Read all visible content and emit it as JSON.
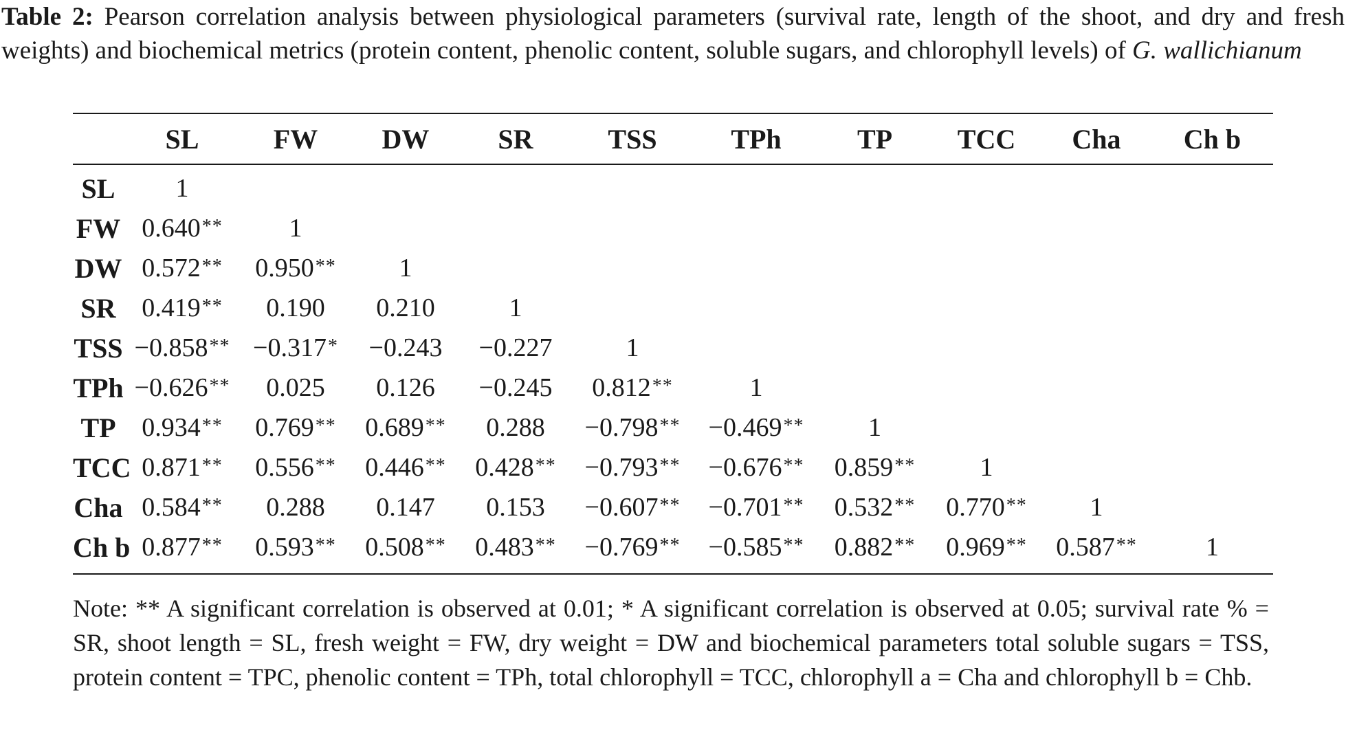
{
  "caption": {
    "label": "Table 2:",
    "text": "Pearson correlation analysis between physiological parameters (survival rate, length of the shoot, and dry and fresh weights) and biochemical metrics (protein content, phenolic content, soluble sugars, and chlorophyll levels) of",
    "species": "G. wallichianum"
  },
  "table": {
    "columns": [
      "SL",
      "FW",
      "DW",
      "SR",
      "TSS",
      "TPh",
      "TP",
      "TCC",
      "Cha",
      "Ch b"
    ],
    "rows": [
      {
        "label": "SL",
        "cells": [
          {
            "v": "1",
            "s": ""
          }
        ]
      },
      {
        "label": "FW",
        "cells": [
          {
            "v": "0.640",
            "s": "**"
          },
          {
            "v": "1",
            "s": ""
          }
        ]
      },
      {
        "label": "DW",
        "cells": [
          {
            "v": "0.572",
            "s": "**"
          },
          {
            "v": "0.950",
            "s": "**"
          },
          {
            "v": "1",
            "s": ""
          }
        ]
      },
      {
        "label": "SR",
        "cells": [
          {
            "v": "0.419",
            "s": "**"
          },
          {
            "v": "0.190",
            "s": ""
          },
          {
            "v": "0.210",
            "s": ""
          },
          {
            "v": "1",
            "s": ""
          }
        ]
      },
      {
        "label": "TSS",
        "cells": [
          {
            "v": "−0.858",
            "s": "**"
          },
          {
            "v": "−0.317",
            "s": "*"
          },
          {
            "v": "−0.243",
            "s": ""
          },
          {
            "v": "−0.227",
            "s": ""
          },
          {
            "v": "1",
            "s": ""
          }
        ]
      },
      {
        "label": "TPh",
        "cells": [
          {
            "v": "−0.626",
            "s": "**"
          },
          {
            "v": "0.025",
            "s": ""
          },
          {
            "v": "0.126",
            "s": ""
          },
          {
            "v": "−0.245",
            "s": ""
          },
          {
            "v": "0.812",
            "s": "**"
          },
          {
            "v": "1",
            "s": ""
          }
        ]
      },
      {
        "label": "TP",
        "cells": [
          {
            "v": "0.934",
            "s": "**"
          },
          {
            "v": "0.769",
            "s": "**"
          },
          {
            "v": "0.689",
            "s": "**"
          },
          {
            "v": "0.288",
            "s": ""
          },
          {
            "v": "−0.798",
            "s": "**"
          },
          {
            "v": "−0.469",
            "s": "**"
          },
          {
            "v": "1",
            "s": ""
          }
        ]
      },
      {
        "label": "TCC",
        "cells": [
          {
            "v": "0.871",
            "s": "**"
          },
          {
            "v": "0.556",
            "s": "**"
          },
          {
            "v": "0.446",
            "s": "**"
          },
          {
            "v": "0.428",
            "s": "**"
          },
          {
            "v": "−0.793",
            "s": "**"
          },
          {
            "v": "−0.676",
            "s": "**"
          },
          {
            "v": "0.859",
            "s": "**"
          },
          {
            "v": "1",
            "s": ""
          }
        ]
      },
      {
        "label": "Cha",
        "cells": [
          {
            "v": "0.584",
            "s": "**"
          },
          {
            "v": "0.288",
            "s": ""
          },
          {
            "v": "0.147",
            "s": ""
          },
          {
            "v": "0.153",
            "s": ""
          },
          {
            "v": "−0.607",
            "s": "**"
          },
          {
            "v": "−0.701",
            "s": "**"
          },
          {
            "v": "0.532",
            "s": "**"
          },
          {
            "v": "0.770",
            "s": "**"
          },
          {
            "v": "1",
            "s": ""
          }
        ]
      },
      {
        "label": "Ch b",
        "cells": [
          {
            "v": "0.877",
            "s": "**"
          },
          {
            "v": "0.593",
            "s": "**"
          },
          {
            "v": "0.508",
            "s": "**"
          },
          {
            "v": "0.483",
            "s": "**"
          },
          {
            "v": "−0.769",
            "s": "**"
          },
          {
            "v": "−0.585",
            "s": "**"
          },
          {
            "v": "0.882",
            "s": "**"
          },
          {
            "v": "0.969",
            "s": "**"
          },
          {
            "v": "0.587",
            "s": "**"
          },
          {
            "v": "1",
            "s": ""
          }
        ]
      }
    ]
  },
  "note": "Note: ** A significant correlation is observed at 0.01; * A significant correlation is observed at 0.05; survival rate % = SR, shoot length = SL, fresh weight = FW, dry weight = DW and biochemical parameters total soluble sugars = TSS, protein content = TPC, phenolic content = TPh, total chlorophyll = TCC, chlorophyll a = Cha and chlorophyll b = Chb."
}
